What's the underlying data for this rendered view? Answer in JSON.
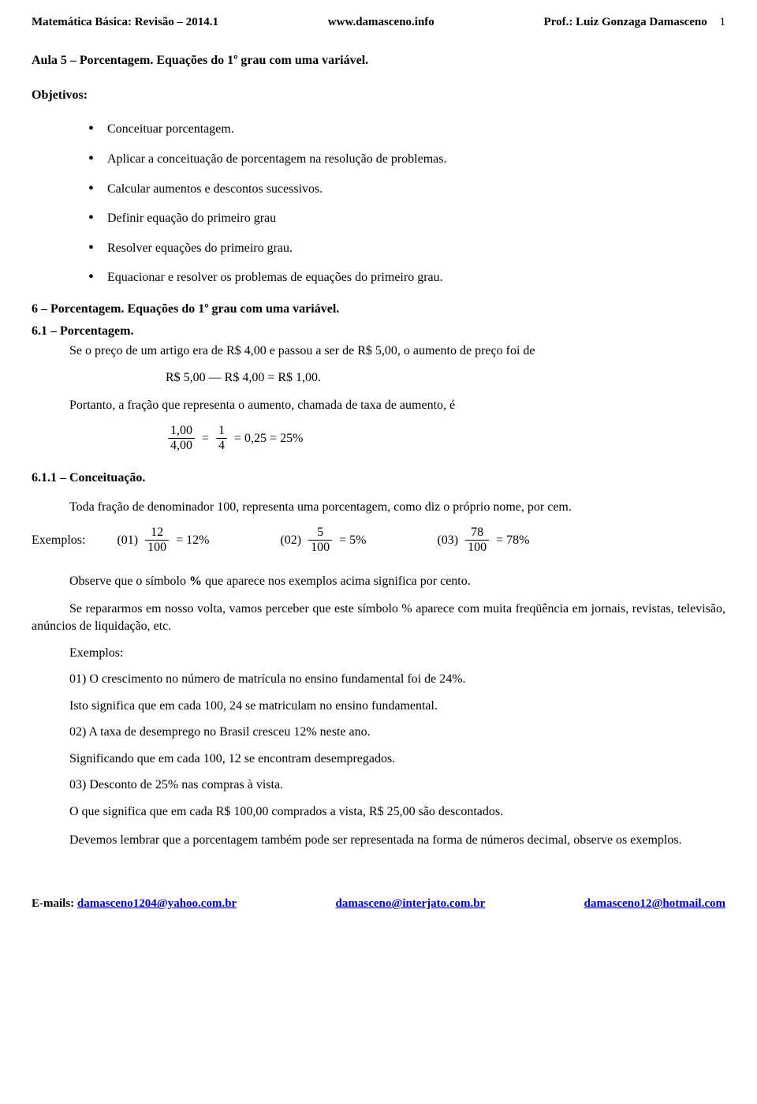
{
  "header": {
    "left": "Matemática Básica: Revisão – 2014.1",
    "center": "www.damasceno.info",
    "right": "Prof.: Luiz Gonzaga Damasceno",
    "page": "1"
  },
  "title": "Aula 5 – Porcentagem. Equações do 1º grau com uma variável.",
  "objetivos_label": "Objetivos:",
  "bullets": [
    "Conceituar porcentagem.",
    "Aplicar a conceituação de porcentagem na resolução de problemas.",
    "Calcular aumentos e descontos sucessivos.",
    "Definir equação do primeiro grau",
    "Resolver equações do primeiro grau.",
    "Equacionar e resolver os problemas de equações do primeiro grau."
  ],
  "sec6": "6 – Porcentagem. Equações do 1º grau com uma variável.",
  "sec61": "6.1 – Porcentagem.",
  "p1": "Se o preço de um artigo era de R$ 4,00 e passou a ser de R$ 5,00, o aumento de preço foi de",
  "eq1": "R$ 5,00 — R$ 4,00 = R$ 1,00.",
  "p2": "Portanto, a fração que representa o aumento, chamada de taxa de aumento, é",
  "frac_main": {
    "n1": "1,00",
    "d1": "4,00",
    "n2": "1",
    "d2": "4",
    "rest": "= 0,25 = 25%"
  },
  "sec611": "6.1.1 – Conceituação.",
  "p3": "Toda fração de denominador 100, representa uma porcentagem, como diz o próprio nome, por cem.",
  "examples_label": "Exemplos:",
  "ex": [
    {
      "tag": "(01)",
      "num": "12",
      "den": "100",
      "res": "= 12%"
    },
    {
      "tag": "(02)",
      "num": "5",
      "den": "100",
      "res": "= 5%"
    },
    {
      "tag": "(03)",
      "num": "78",
      "den": "100",
      "res": "= 78%"
    }
  ],
  "p4_a": "Observe que o símbolo ",
  "p4_b": "%",
  "p4_c": " que aparece nos exemplos acima significa por cento.",
  "p5": "Se repararmos em nosso volta, vamos perceber que este símbolo % aparece com muita freqüência em jornais, revistas, televisão, anúncios de liquidação, etc.",
  "ex_label2": "Exemplos:",
  "lines": [
    "01) O crescimento no número de matrícula no ensino fundamental foi de 24%.",
    "Isto significa que em cada 100, 24 se matriculam no ensino fundamental.",
    "02) A taxa de desemprego no Brasil cresceu 12% neste ano.",
    "Significando que em cada 100, 12 se encontram desempregados.",
    "03) Desconto de 25% nas compras à vista.",
    "O que significa que em cada R$ 100,00 comprados a vista, R$ 25,00 são descontados."
  ],
  "p6": "Devemos lembrar que a porcentagem também pode ser representada na forma de números decimal, observe os exemplos.",
  "footer": {
    "label": "E-mails: ",
    "m1": "damasceno1204@yahoo.com.br",
    "m2": "damasceno@interjato.com.br",
    "m3": "damasceno12@hotmail.com"
  }
}
